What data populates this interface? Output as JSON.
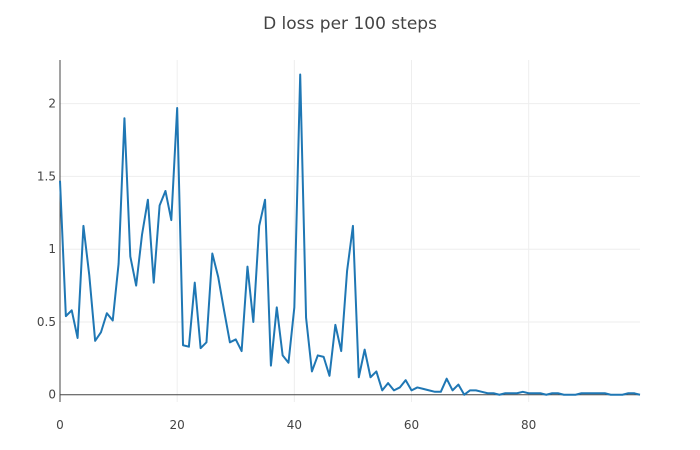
{
  "chart_data": {
    "type": "line",
    "title": "D loss per 100 steps",
    "xlabel": "",
    "ylabel": "",
    "xlim": [
      0,
      99
    ],
    "ylim": [
      -0.05,
      2.3
    ],
    "xticks": [
      0,
      20,
      40,
      60,
      80
    ],
    "yticks": [
      0,
      0.5,
      1,
      1.5,
      2
    ],
    "xtick_labels": [
      "0",
      "20",
      "40",
      "60",
      "80"
    ],
    "ytick_labels": [
      "0",
      "0.5",
      "1",
      "1.5",
      "2"
    ],
    "grid": true,
    "colors": {
      "series": "#1f77b4",
      "grid": "#eeeeee",
      "axis": "#444444",
      "text": "#444444"
    },
    "series": [
      {
        "values": [
          1.47,
          0.54,
          0.58,
          0.39,
          1.16,
          0.82,
          0.37,
          0.43,
          0.56,
          0.51,
          0.9,
          1.9,
          0.95,
          0.75,
          1.1,
          1.34,
          0.77,
          1.3,
          1.4,
          1.2,
          1.97,
          0.34,
          0.33,
          0.77,
          0.32,
          0.36,
          0.97,
          0.81,
          0.58,
          0.36,
          0.38,
          0.3,
          0.88,
          0.5,
          1.16,
          1.34,
          0.2,
          0.6,
          0.27,
          0.22,
          0.6,
          2.2,
          0.53,
          0.16,
          0.27,
          0.26,
          0.13,
          0.48,
          0.3,
          0.85,
          1.16,
          0.12,
          0.31,
          0.12,
          0.16,
          0.03,
          0.08,
          0.03,
          0.05,
          0.1,
          0.03,
          0.05,
          0.04,
          0.03,
          0.02,
          0.02,
          0.11,
          0.03,
          0.07,
          0.0,
          0.03,
          0.03,
          0.02,
          0.01,
          0.01,
          0.0,
          0.01,
          0.01,
          0.01,
          0.02,
          0.01,
          0.01,
          0.01,
          0.0,
          0.01,
          0.01,
          0.0,
          0.0,
          0.0,
          0.01,
          0.01,
          0.01,
          0.01,
          0.01,
          0.0,
          0.0,
          0.0,
          0.01,
          0.01,
          0.0
        ]
      }
    ]
  }
}
